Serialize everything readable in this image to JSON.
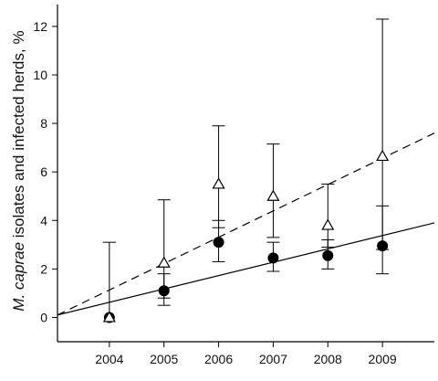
{
  "chart_data": {
    "type": "scatter",
    "ylabel": {
      "italic": "M. caprae",
      "rest": " isolates and infected herds, %"
    },
    "x": [
      "2004",
      "2005",
      "2006",
      "2007",
      "2008",
      "2009"
    ],
    "xlim": [
      2003.05,
      2009.95
    ],
    "ylim": [
      -1,
      12.9
    ],
    "y_ticks": [
      0,
      2,
      4,
      6,
      8,
      10,
      12
    ],
    "series": [
      {
        "marker": "circle-filled",
        "values": [
          0.0,
          1.1,
          3.1,
          2.45,
          2.55,
          2.95
        ],
        "err_low": [
          null,
          0.5,
          2.3,
          1.9,
          2.0,
          1.8
        ],
        "err_high": [
          null,
          1.8,
          4.0,
          3.1,
          3.2,
          4.6
        ],
        "trend": {
          "style": "solid",
          "y_at_xmin": 0.1,
          "y_at_xmax": 3.9
        }
      },
      {
        "marker": "triangle-open",
        "values": [
          0.0,
          2.25,
          5.5,
          5.0,
          3.8,
          6.65
        ],
        "err_low": [
          null,
          0.8,
          3.7,
          3.3,
          2.9,
          2.8
        ],
        "err_high": [
          3.1,
          4.85,
          7.9,
          7.15,
          5.5,
          12.3
        ],
        "trend": {
          "style": "dashed",
          "y_at_xmin": 0.1,
          "y_at_xmax": 7.6
        }
      }
    ],
    "grid": false,
    "legend": "none"
  }
}
